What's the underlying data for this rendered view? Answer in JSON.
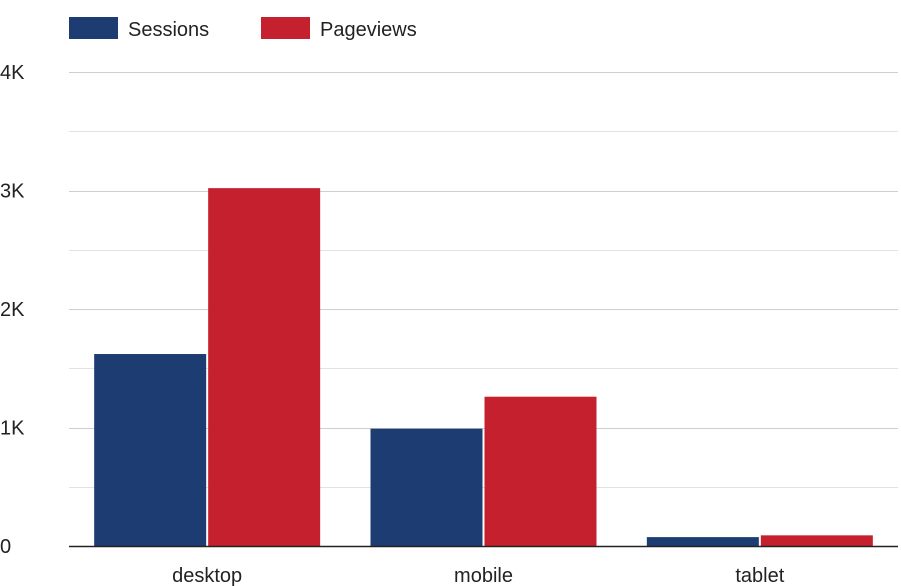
{
  "chart_data": {
    "type": "bar",
    "title": "",
    "xlabel": "",
    "ylabel": "",
    "categories": [
      "desktop",
      "mobile",
      "tablet"
    ],
    "series": [
      {
        "name": "Sessions",
        "values": [
          1620,
          990,
          75
        ],
        "color": "#1d3c72"
      },
      {
        "name": "Pageviews",
        "values": [
          3020,
          1260,
          90
        ],
        "color": "#c5202e"
      }
    ],
    "ylim": [
      0,
      4000
    ],
    "y_ticks": [
      {
        "value": 0,
        "label": "0"
      },
      {
        "value": 1000,
        "label": "1K"
      },
      {
        "value": 2000,
        "label": "2K"
      },
      {
        "value": 3000,
        "label": "3K"
      },
      {
        "value": 4000,
        "label": "4K"
      }
    ],
    "minor_gridlines": [
      500,
      1500,
      2500,
      3500
    ],
    "grid": true,
    "legend_position": "top-left"
  }
}
